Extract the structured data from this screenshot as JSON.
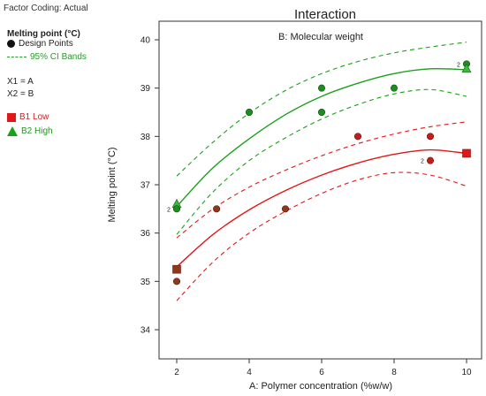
{
  "header": {
    "factor_coding": "Factor Coding: Actual"
  },
  "legend": {
    "title": "Melting point (°C)",
    "design_points": "Design Points",
    "ci_bands": "95% CI Bands",
    "x1": "X1 = A",
    "x2": "X2 = B",
    "b1": "B1 Low",
    "b2": "B2 High",
    "colors": {
      "low": "#e01818",
      "high": "#1aa01a",
      "low_point": "#c81c1c",
      "high_point": "#1e8c1e",
      "low_point_dark": "#8b3a1a"
    }
  },
  "chart_data": {
    "type": "line",
    "title": "Interaction",
    "annotation": "B: Molecular weight",
    "xlabel": "A: Polymer concentration (%w/w)",
    "ylabel": "Melting point (°C)",
    "xlim": [
      2,
      10
    ],
    "ylim": [
      34,
      40
    ],
    "xticks": [
      2,
      4,
      6,
      8,
      10
    ],
    "yticks": [
      34,
      35,
      36,
      37,
      38,
      39,
      40
    ],
    "x": [
      2,
      3,
      4,
      5,
      6,
      7,
      8,
      9,
      10
    ],
    "series": [
      {
        "name": "B1 Low",
        "color": "#e01818",
        "fit": [
          35.3,
          35.97,
          36.48,
          36.88,
          37.2,
          37.45,
          37.63,
          37.72,
          37.65
        ],
        "ci_upper": [
          35.9,
          36.5,
          36.95,
          37.3,
          37.6,
          37.85,
          38.05,
          38.2,
          38.3
        ],
        "ci_lower": [
          34.6,
          35.4,
          36.0,
          36.45,
          36.82,
          37.1,
          37.25,
          37.2,
          36.97
        ],
        "points": [
          {
            "x": 2,
            "y": 35.25,
            "marker": "square",
            "rep": ""
          },
          {
            "x": 2,
            "y": 35.0,
            "marker": "circle",
            "rep": ""
          },
          {
            "x": 3.1,
            "y": 36.5,
            "marker": "circle",
            "rep": ""
          },
          {
            "x": 5.0,
            "y": 36.5,
            "marker": "circle",
            "rep": ""
          },
          {
            "x": 7.0,
            "y": 38.0,
            "marker": "circle",
            "rep": ""
          },
          {
            "x": 9.0,
            "y": 38.0,
            "marker": "circle",
            "rep": ""
          },
          {
            "x": 9.0,
            "y": 37.5,
            "marker": "circle",
            "rep": "2"
          },
          {
            "x": 10,
            "y": 37.65,
            "marker": "square",
            "rep": ""
          }
        ]
      },
      {
        "name": "B2 High",
        "color": "#1aa01a",
        "fit": [
          36.55,
          37.35,
          37.95,
          38.45,
          38.83,
          39.1,
          39.3,
          39.4,
          39.38
        ],
        "ci_upper": [
          37.18,
          37.88,
          38.48,
          38.95,
          39.3,
          39.55,
          39.73,
          39.85,
          39.95
        ],
        "ci_lower": [
          35.97,
          36.85,
          37.5,
          37.97,
          38.36,
          38.66,
          38.88,
          38.97,
          38.83
        ],
        "points": [
          {
            "x": 2,
            "y": 36.6,
            "marker": "triangle",
            "rep": ""
          },
          {
            "x": 2,
            "y": 36.5,
            "marker": "circle",
            "rep": "2"
          },
          {
            "x": 4,
            "y": 38.5,
            "marker": "circle",
            "rep": ""
          },
          {
            "x": 6,
            "y": 39.0,
            "marker": "circle",
            "rep": ""
          },
          {
            "x": 6,
            "y": 38.5,
            "marker": "circle",
            "rep": ""
          },
          {
            "x": 8,
            "y": 39.0,
            "marker": "circle",
            "rep": ""
          },
          {
            "x": 10,
            "y": 39.5,
            "marker": "circle",
            "rep": "2"
          },
          {
            "x": 10,
            "y": 39.4,
            "marker": "triangle",
            "rep": ""
          }
        ]
      }
    ],
    "grid": false
  }
}
